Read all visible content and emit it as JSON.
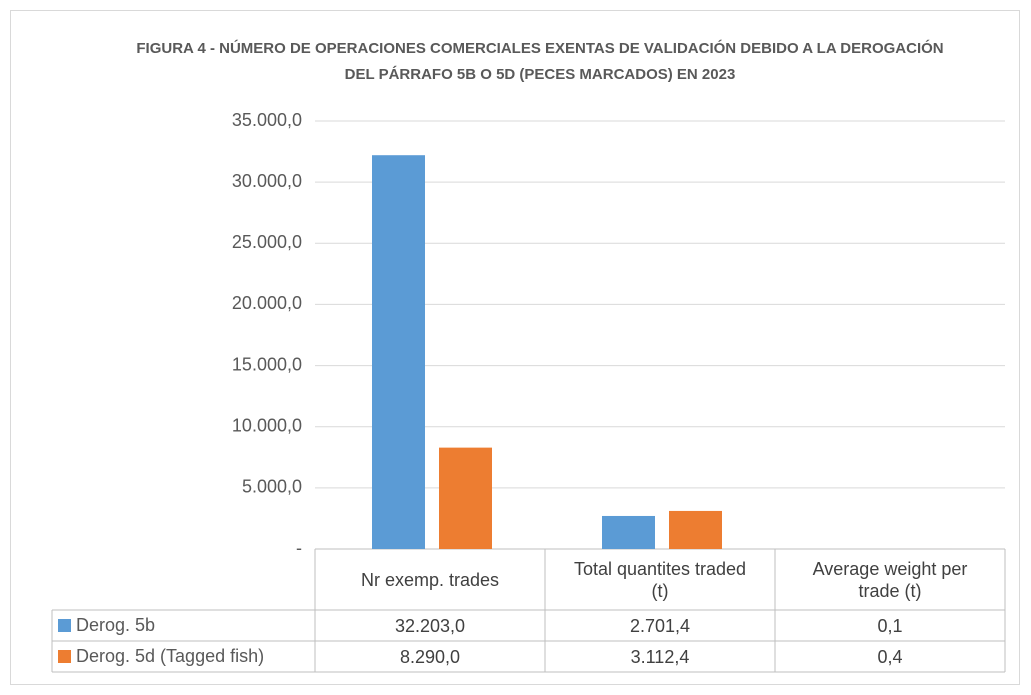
{
  "chart_data": {
    "type": "bar",
    "title": "FIGURA 4 - NÚMERO DE OPERACIONES COMERCIALES EXENTAS DE VALIDACIÓN DEBIDO A LA DEROGACIÓN DEL PÁRRAFO 5B O 5D (PECES MARCADOS) EN 2023",
    "categories": [
      "Nr exemp. trades",
      "Total quantites traded (t)",
      "Average weight per trade (t)"
    ],
    "series": [
      {
        "name": "Derog. 5b",
        "color": "#5b9bd5",
        "values": [
          32203,
          2701.4,
          0.1
        ],
        "value_labels": [
          "32.203,0",
          "2.701,4",
          "0,1"
        ]
      },
      {
        "name": "Derog. 5d (Tagged fish)",
        "color": "#ed7d31",
        "values": [
          8290,
          3112.4,
          0.4
        ],
        "value_labels": [
          "8.290,0",
          "3.112,4",
          "0,4"
        ]
      }
    ],
    "ylim": [
      0,
      35000
    ],
    "yticks": [
      {
        "value": 0,
        "label": "-"
      },
      {
        "value": 5000,
        "label": "5.000,0"
      },
      {
        "value": 10000,
        "label": "10.000,0"
      },
      {
        "value": 15000,
        "label": "15.000,0"
      },
      {
        "value": 20000,
        "label": "20.000,0"
      },
      {
        "value": 25000,
        "label": "25.000,0"
      },
      {
        "value": 30000,
        "label": "30.000,0"
      },
      {
        "value": 35000,
        "label": "35.000,0"
      }
    ],
    "grid": true
  }
}
